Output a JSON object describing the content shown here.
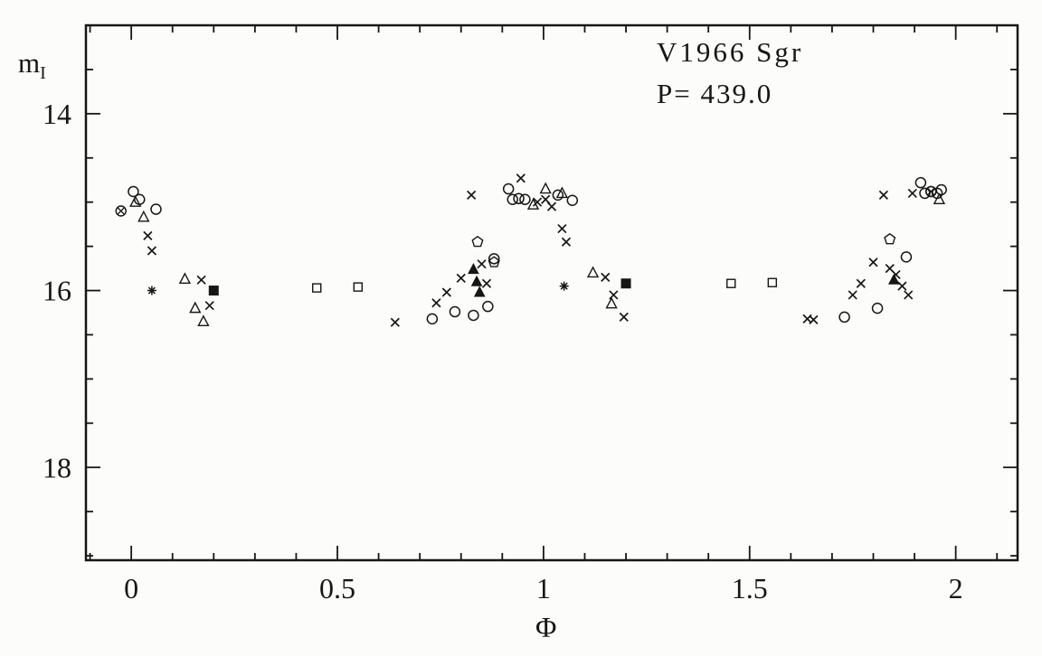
{
  "chart_data": {
    "type": "scatter",
    "title": "V1966 Sgr",
    "subtitle": "P= 439.0",
    "xlabel": "Φ",
    "ylabel_main": "m",
    "ylabel_sub": "I",
    "xlim": [
      -0.11,
      2.15
    ],
    "ylim_top": 13.0,
    "ylim_bottom": 19.05,
    "x_major_ticks": [
      0,
      0.5,
      1,
      1.5,
      2
    ],
    "x_major_labels": [
      "0",
      "0.5",
      "1",
      "1.5",
      "2"
    ],
    "x_minor_step": 0.1,
    "y_major_ticks": [
      14,
      16,
      18
    ],
    "y_major_labels": [
      "14",
      "16",
      "18"
    ],
    "y_minor_step": 0.5,
    "grid": false,
    "legend": "none",
    "axis_color": "#161616",
    "series": [
      {
        "name": "crosses",
        "symbol": "cross",
        "points": [
          [
            0.04,
            15.38
          ],
          [
            0.05,
            15.55
          ],
          [
            0.17,
            15.88
          ],
          [
            0.19,
            16.17
          ],
          [
            0.64,
            16.36
          ],
          [
            0.74,
            16.14
          ],
          [
            0.765,
            16.02
          ],
          [
            0.8,
            15.86
          ],
          [
            0.825,
            14.92
          ],
          [
            0.85,
            15.7
          ],
          [
            0.862,
            15.92
          ],
          [
            0.945,
            14.73
          ],
          [
            0.985,
            15.0
          ],
          [
            1.005,
            14.97
          ],
          [
            1.02,
            15.05
          ],
          [
            1.045,
            15.3
          ],
          [
            1.055,
            15.45
          ],
          [
            1.15,
            15.85
          ],
          [
            1.17,
            16.05
          ],
          [
            1.195,
            16.3
          ],
          [
            1.64,
            16.32
          ],
          [
            1.655,
            16.33
          ],
          [
            1.75,
            16.05
          ],
          [
            1.77,
            15.92
          ],
          [
            1.8,
            15.68
          ],
          [
            1.825,
            14.92
          ],
          [
            1.84,
            15.75
          ],
          [
            1.855,
            15.82
          ],
          [
            1.87,
            15.95
          ],
          [
            1.885,
            16.05
          ],
          [
            1.895,
            14.9
          ]
        ]
      },
      {
        "name": "open-circles",
        "symbol": "open-circle",
        "points": [
          [
            0.005,
            14.88
          ],
          [
            0.02,
            14.97
          ],
          [
            0.06,
            15.08
          ],
          [
            0.73,
            16.32
          ],
          [
            0.785,
            16.24
          ],
          [
            0.83,
            16.28
          ],
          [
            0.865,
            16.18
          ],
          [
            0.88,
            15.64
          ],
          [
            0.915,
            14.85
          ],
          [
            0.925,
            14.97
          ],
          [
            0.94,
            14.96
          ],
          [
            0.955,
            14.97
          ],
          [
            1.035,
            14.92
          ],
          [
            1.07,
            14.98
          ],
          [
            1.73,
            16.3
          ],
          [
            1.81,
            16.2
          ],
          [
            1.88,
            15.62
          ],
          [
            1.915,
            14.78
          ],
          [
            1.925,
            14.9
          ],
          [
            1.94,
            14.88
          ],
          [
            1.955,
            14.9
          ],
          [
            1.965,
            14.86
          ]
        ]
      },
      {
        "name": "open-triangles",
        "symbol": "open-triangle",
        "points": [
          [
            0.01,
            15.0
          ],
          [
            0.03,
            15.17
          ],
          [
            0.13,
            15.87
          ],
          [
            0.155,
            16.2
          ],
          [
            0.175,
            16.35
          ],
          [
            0.975,
            15.03
          ],
          [
            1.005,
            14.85
          ],
          [
            1.045,
            14.9
          ],
          [
            1.12,
            15.8
          ],
          [
            1.165,
            16.15
          ],
          [
            1.96,
            14.97
          ]
        ]
      },
      {
        "name": "filled-triangles",
        "symbol": "filled-triangle",
        "points": [
          [
            0.83,
            15.76
          ],
          [
            0.838,
            15.9
          ],
          [
            0.845,
            16.02
          ],
          [
            1.85,
            15.88
          ]
        ]
      },
      {
        "name": "pentagons",
        "symbol": "pentagon",
        "points": [
          [
            0.84,
            15.45
          ],
          [
            0.88,
            15.68
          ],
          [
            1.84,
            15.42
          ]
        ]
      },
      {
        "name": "open-squares",
        "symbol": "open-square",
        "points": [
          [
            0.45,
            15.97
          ],
          [
            0.55,
            15.96
          ],
          [
            1.455,
            15.92
          ],
          [
            1.555,
            15.91
          ]
        ]
      },
      {
        "name": "filled-squares",
        "symbol": "filled-square",
        "points": [
          [
            0.2,
            16.0
          ],
          [
            1.2,
            15.92
          ]
        ]
      },
      {
        "name": "asterisks",
        "symbol": "asterisk",
        "points": [
          [
            0.05,
            16.0
          ],
          [
            1.05,
            15.95
          ]
        ]
      },
      {
        "name": "circled-crosses",
        "symbol": "circle-x",
        "points": [
          [
            -0.025,
            15.1
          ],
          [
            1.94,
            14.88
          ]
        ]
      }
    ]
  }
}
